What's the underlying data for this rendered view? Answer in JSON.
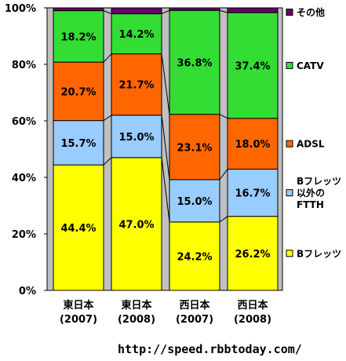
{
  "source_url": "http://speed.rbbtoday.com/",
  "chart_data": {
    "type": "bar",
    "stacked": "percent",
    "categories": [
      [
        "東日本",
        "(2007)"
      ],
      [
        "東日本",
        "(2008)"
      ],
      [
        "西日本",
        "(2007)"
      ],
      [
        "西日本",
        "(2008)"
      ]
    ],
    "series": [
      {
        "name": "Bフレッツ",
        "legend_lines": [
          "Bフレッツ"
        ],
        "color": "#ffff00",
        "values": [
          44.4,
          47.0,
          24.2,
          26.2
        ],
        "labels": [
          "44.4%",
          "47.0%",
          "24.2%",
          "26.2%"
        ]
      },
      {
        "name": "Bフレッツ以外のFTTH",
        "legend_lines": [
          "Bフレッツ",
          "以外の",
          "FTTH"
        ],
        "color": "#99ccff",
        "values": [
          15.7,
          15.0,
          15.0,
          16.7
        ],
        "labels": [
          "15.7%",
          "15.0%",
          "15.0%",
          "16.7%"
        ]
      },
      {
        "name": "ADSL",
        "legend_lines": [
          "ADSL"
        ],
        "color": "#ff6600",
        "values": [
          20.7,
          21.7,
          23.1,
          18.0
        ],
        "labels": [
          "20.7%",
          "21.7%",
          "23.1%",
          "18.0%"
        ]
      },
      {
        "name": "CATV",
        "legend_lines": [
          "CATV"
        ],
        "color": "#33dd33",
        "values": [
          18.2,
          14.2,
          36.8,
          37.4
        ],
        "labels": [
          "18.2%",
          "14.2%",
          "36.8%",
          "37.4%"
        ]
      },
      {
        "name": "その他",
        "legend_lines": [
          "その他"
        ],
        "color": "#660066",
        "values": [
          1.0,
          2.1,
          0.9,
          1.7
        ],
        "labels": [
          "",
          "",
          "",
          ""
        ]
      }
    ],
    "ylim": [
      0,
      100
    ],
    "yticks": [
      "0%",
      "20%",
      "40%",
      "60%",
      "80%",
      "100%"
    ],
    "plot_background": "#c0c0c0",
    "legend_position": "right"
  }
}
